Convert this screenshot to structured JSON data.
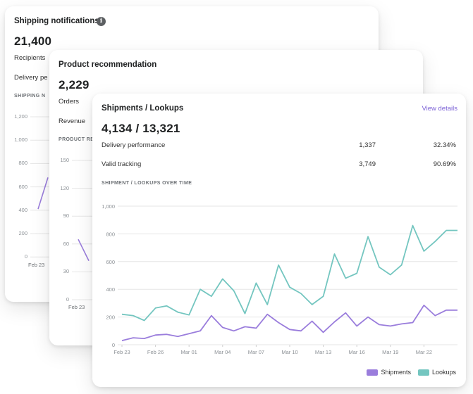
{
  "colors": {
    "shipments": "#9a7ddc",
    "lookups": "#74c6c0",
    "grid": "#e6e6e6",
    "axis_text": "#8c9196",
    "link": "#7b61d6"
  },
  "card1": {
    "title": "Shipping notifications",
    "info_icon": "info-icon",
    "total": "21,400",
    "row1_label": "Recipients",
    "row2_label": "Delivery pe",
    "section_label": "SHIPPING N",
    "y_ticks": [
      "1,200",
      "1,000",
      "800",
      "600",
      "400",
      "200",
      "0"
    ],
    "x_tick": "Feb 23"
  },
  "card2": {
    "title": "Product recommendation",
    "total": "2,229",
    "row1_label": "Orders",
    "row2_label": "Revenue",
    "section_label": "PRODUCT RE",
    "y_ticks": [
      "150",
      "120",
      "90",
      "60",
      "30",
      "0"
    ],
    "x_tick": "Feb 23"
  },
  "card3": {
    "title": "Shipments / Lookups",
    "view_details": "View details",
    "total": "4,134 / 13,321",
    "rows": [
      {
        "label": "Delivery performance",
        "count": "1,337",
        "percent": "32.34%"
      },
      {
        "label": "Valid tracking",
        "count": "3,749",
        "percent": "90.69%"
      }
    ],
    "section_label": "SHIPMENT / LOOKUPS OVER TIME"
  },
  "chart_data": {
    "type": "line",
    "title": "Shipment / Lookups over time",
    "ylim": [
      0,
      1000
    ],
    "y_ticks": [
      0,
      200,
      400,
      600,
      800,
      1000
    ],
    "y_tick_labels": [
      "0",
      "200",
      "400",
      "600",
      "800",
      "1,000"
    ],
    "x": [
      0,
      1,
      2,
      3,
      4,
      5,
      6,
      7,
      8,
      9,
      10,
      11,
      12,
      13,
      14,
      15,
      16,
      17,
      18,
      19,
      20,
      21,
      22,
      23,
      24,
      25,
      26,
      27,
      28,
      29,
      30
    ],
    "x_tick_positions": [
      0,
      3,
      6,
      9,
      12,
      15,
      18,
      21,
      24,
      27
    ],
    "x_tick_labels": [
      "Feb 23",
      "Feb 26",
      "Mar 01",
      "Mar 04",
      "Mar 07",
      "Mar 10",
      "Mar 13",
      "Mar 16",
      "Mar 19",
      "Mar 22"
    ],
    "series": [
      {
        "name": "Shipments",
        "values": [
          30,
          50,
          45,
          70,
          75,
          60,
          80,
          100,
          210,
          125,
          100,
          130,
          120,
          220,
          160,
          110,
          100,
          170,
          90,
          165,
          230,
          135,
          200,
          145,
          135,
          150,
          160,
          285,
          210,
          250,
          250
        ]
      },
      {
        "name": "Lookups",
        "values": [
          220,
          210,
          175,
          265,
          280,
          235,
          215,
          400,
          350,
          475,
          390,
          225,
          445,
          290,
          575,
          415,
          370,
          290,
          350,
          655,
          480,
          515,
          780,
          560,
          505,
          575,
          860,
          675,
          745,
          825,
          825
        ]
      }
    ],
    "legend": [
      "Shipments",
      "Lookups"
    ],
    "legend_position": "bottom-right"
  },
  "bg_chart1_values": [
    410,
    680
  ],
  "bg_chart2_values": [
    65,
    42
  ]
}
